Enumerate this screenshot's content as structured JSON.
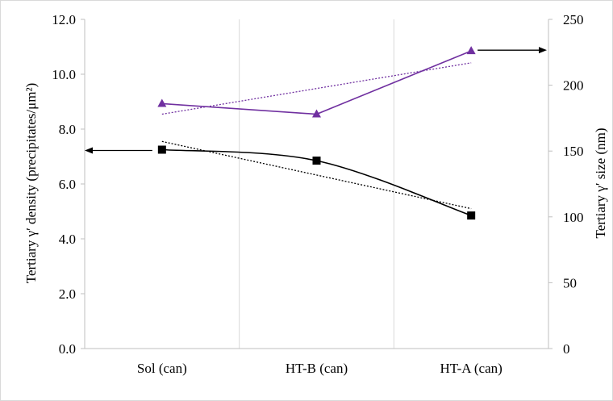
{
  "chart_data": {
    "type": "line",
    "categories": [
      "Sol (can)",
      "HT-B (can)",
      "HT-A (can)"
    ],
    "y_left": {
      "label": "Tertiary γ′ density (precipitates/μm²)",
      "ylim": [
        0,
        12
      ],
      "ticks": [
        "0.0",
        "2.0",
        "4.0",
        "6.0",
        "8.0",
        "10.0",
        "12.0"
      ]
    },
    "y_right": {
      "label": "Tertiary γ′ size (nm)",
      "ylim": [
        0,
        250
      ],
      "ticks": [
        "0",
        "50",
        "100",
        "150",
        "200",
        "250"
      ]
    },
    "series": [
      {
        "axis": "left",
        "marker": "square",
        "color": "#000000",
        "values": [
          7.25,
          6.85,
          4.85
        ],
        "trendline": [
          7.55,
          5.1
        ]
      },
      {
        "axis": "right",
        "marker": "triangle",
        "color": "#7030a0",
        "values": [
          186,
          178,
          226
        ],
        "trendline": [
          178,
          217
        ]
      }
    ],
    "grid": "vertical",
    "legend": "none"
  }
}
